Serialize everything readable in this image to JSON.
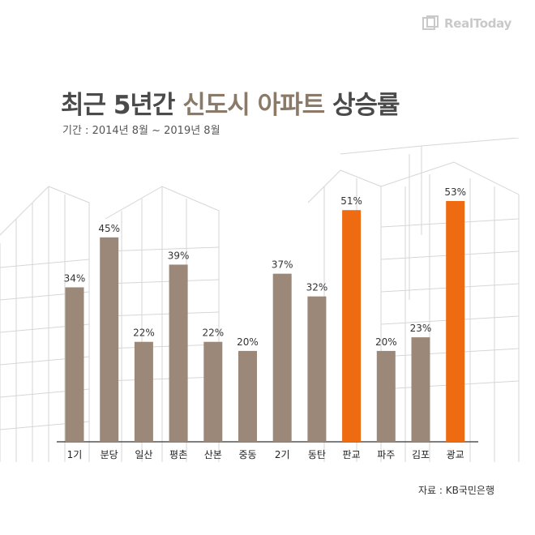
{
  "header": {
    "logo_text": "RealToday",
    "title_part1": "최근  5년간 ",
    "title_part2": "신도시 아파트",
    "title_part3": " 상승률",
    "subtitle": "기간 : 2014년 8월 ~ 2019년 8월"
  },
  "footer": {
    "source": "자료 : KB국민은행"
  },
  "colors": {
    "default_bar": "#9b8878",
    "highlight_bar": "#ef6b12",
    "axis": "#333333"
  },
  "chart_data": {
    "type": "bar",
    "title": "최근 5년간 신도시 아파트 상승률",
    "subtitle": "기간 : 2014년 8월 ~ 2019년 8월",
    "categories": [
      "1기",
      "분당",
      "일산",
      "평촌",
      "산본",
      "중동",
      "2기",
      "동탄",
      "판교",
      "파주",
      "김포",
      "광교"
    ],
    "values": [
      34,
      45,
      22,
      39,
      22,
      20,
      37,
      32,
      51,
      20,
      23,
      53
    ],
    "value_labels": [
      "34%",
      "45%",
      "22%",
      "39%",
      "22%",
      "20%",
      "37%",
      "32%",
      "51%",
      "20%",
      "23%",
      "53%"
    ],
    "highlighted": [
      "판교",
      "광교"
    ],
    "unit": "%",
    "ylim": [
      0,
      53
    ],
    "grid": false,
    "legend": "none"
  }
}
